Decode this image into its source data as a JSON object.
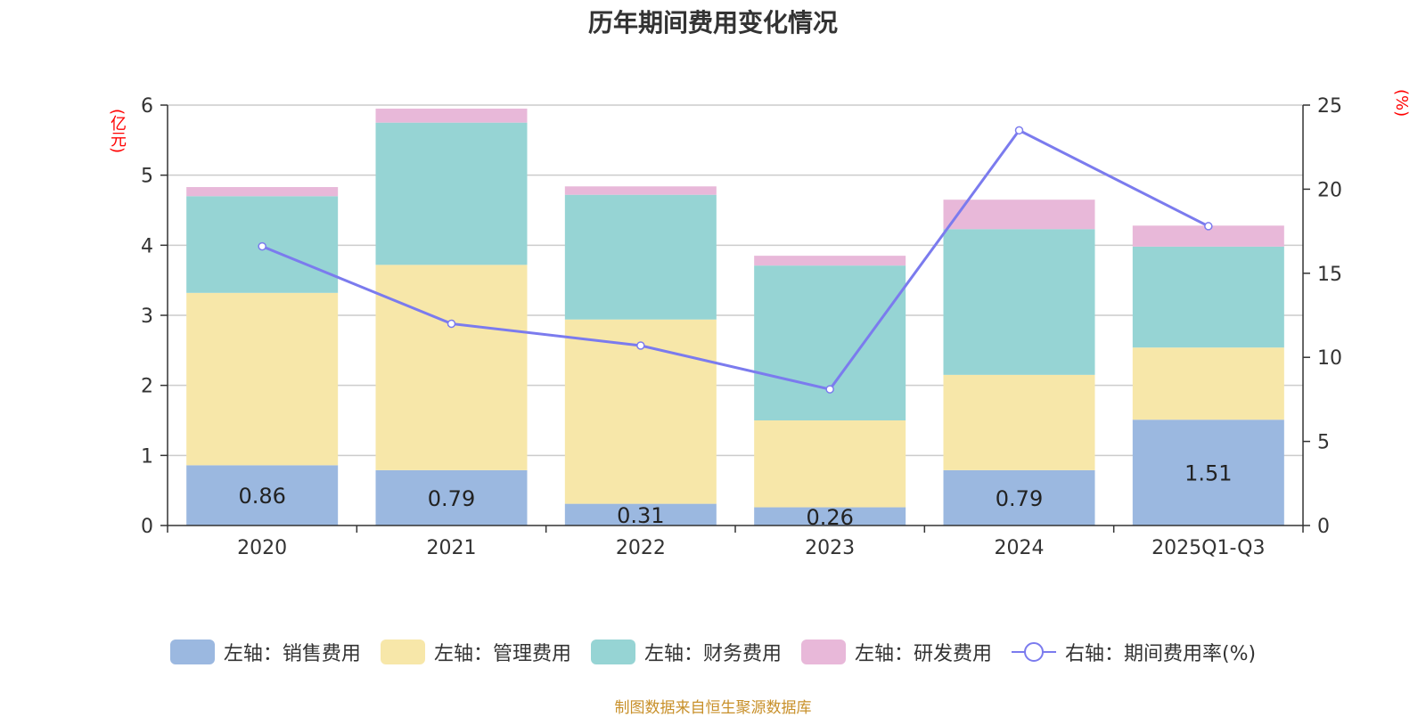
{
  "chart_data": {
    "type": "bar",
    "title": "历年期间费用变化情况",
    "left_unit": "(亿元)",
    "right_unit": "(%)",
    "categories": [
      "2020",
      "2021",
      "2022",
      "2023",
      "2024",
      "2025Q1-Q3"
    ],
    "left_ylim": [
      0,
      6
    ],
    "left_ticks": [
      "0",
      "1",
      "2",
      "3",
      "4",
      "5",
      "6"
    ],
    "right_ylim": [
      0,
      25
    ],
    "right_ticks": [
      "0",
      "5",
      "10",
      "15",
      "20",
      "25"
    ],
    "series": [
      {
        "name": "左轴：销售费用",
        "axis": "left",
        "color": "#9bb8e0",
        "values": [
          0.86,
          0.79,
          0.31,
          0.26,
          0.79,
          1.51
        ],
        "labels": [
          "0.86",
          "0.79",
          "0.31",
          "0.26",
          "0.79",
          "1.51"
        ]
      },
      {
        "name": "左轴：管理费用",
        "axis": "left",
        "color": "#f7e7a9",
        "values": [
          2.46,
          2.93,
          2.63,
          1.24,
          1.36,
          1.03
        ]
      },
      {
        "name": "左轴：财务费用",
        "axis": "left",
        "color": "#96d4d4",
        "values": [
          1.38,
          2.03,
          1.78,
          2.21,
          2.08,
          1.44
        ]
      },
      {
        "name": "左轴：研发费用",
        "axis": "left",
        "color": "#e8b8d9",
        "values": [
          0.13,
          0.2,
          0.12,
          0.14,
          0.42,
          0.3
        ]
      },
      {
        "name": "右轴：期间费用率(%)",
        "axis": "right",
        "type": "line",
        "color": "#7b7bee",
        "values": [
          16.6,
          12.0,
          10.7,
          8.1,
          23.5,
          17.8
        ]
      }
    ]
  },
  "source": "制图数据来自恒生聚源数据库"
}
